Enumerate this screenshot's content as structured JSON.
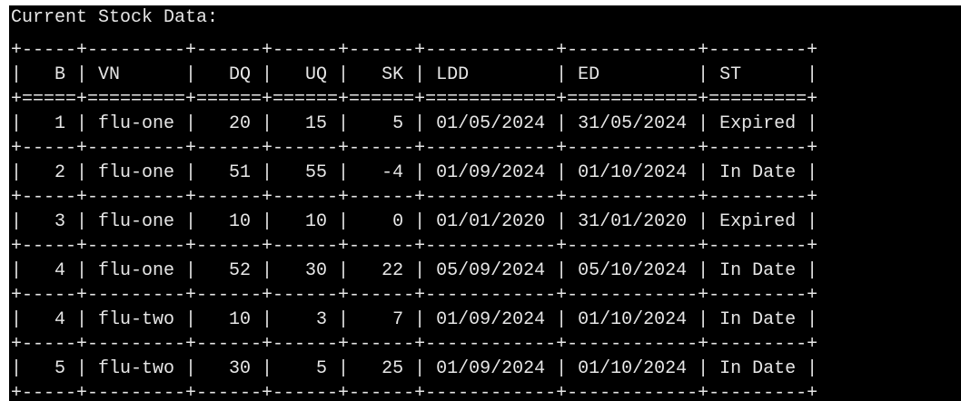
{
  "terminal": {
    "title": "Current Stock Data:",
    "table": {
      "columns": [
        "B",
        "VN",
        "DQ",
        "UQ",
        "SK",
        "LDD",
        "ED",
        "ST"
      ],
      "rows": [
        [
          "1",
          "flu-one",
          "20",
          "15",
          "5",
          "01/05/2024",
          "31/05/2024",
          "Expired"
        ],
        [
          "2",
          "flu-one",
          "51",
          "55",
          "-4",
          "01/09/2024",
          "01/10/2024",
          "In Date"
        ],
        [
          "3",
          "flu-one",
          "10",
          "10",
          "0",
          "01/01/2020",
          "31/01/2020",
          "Expired"
        ],
        [
          "4",
          "flu-one",
          "52",
          "30",
          "22",
          "05/09/2024",
          "05/10/2024",
          "In Date"
        ],
        [
          "4",
          "flu-two",
          "10",
          "3",
          "7",
          "01/09/2024",
          "01/10/2024",
          "In Date"
        ],
        [
          "5",
          "flu-two",
          "30",
          "5",
          "25",
          "01/09/2024",
          "01/10/2024",
          "In Date"
        ]
      ]
    }
  }
}
